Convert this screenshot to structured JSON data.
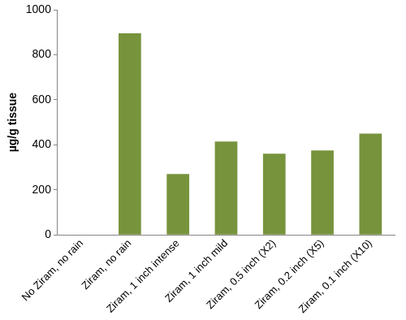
{
  "chart_data": {
    "type": "bar",
    "y_label": "µg/g tissue",
    "categories": [
      "No Ziram, no rain",
      "Ziram, no rain",
      "Ziram, 1 inch intense",
      "Ziram, 1 inch mild",
      "Ziram, 0.5 inch (X2)",
      "Ziram, 0.2 inch (X5)",
      "Ziram, 0.1 inch (X10)"
    ],
    "values": [
      0,
      895,
      270,
      415,
      360,
      375,
      450
    ],
    "color": "#77933c",
    "ylim": [
      0,
      1000
    ],
    "yticks": [
      0,
      200,
      400,
      600,
      800,
      1000
    ],
    "grid": false
  }
}
